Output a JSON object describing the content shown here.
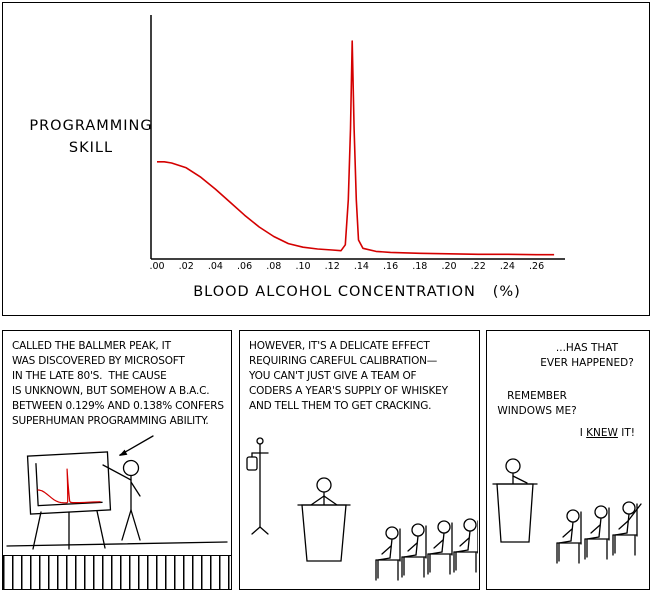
{
  "chart_data": {
    "type": "line",
    "title": "",
    "xlabel": "BLOOD ALCOHOL CONCENTRATION   (%)",
    "ylabel": "PROGRAMMING SKILL",
    "x_tick_labels": [
      ".00",
      ".02",
      ".04",
      ".06",
      ".08",
      ".10",
      ".12",
      ".14",
      ".16",
      ".18",
      ".20",
      ".22",
      ".24",
      ".26"
    ],
    "x_range": [
      0.0,
      0.272
    ],
    "y_range": [
      0,
      1
    ],
    "grid": false,
    "legend": false,
    "line_color": "#d40000",
    "series": [
      {
        "name": "programming skill vs blood alcohol concentration",
        "points": [
          [
            0,
            0.41
          ],
          [
            0.005,
            0.41
          ],
          [
            0.01,
            0.405
          ],
          [
            0.02,
            0.385
          ],
          [
            0.03,
            0.345
          ],
          [
            0.04,
            0.295
          ],
          [
            0.05,
            0.24
          ],
          [
            0.06,
            0.185
          ],
          [
            0.07,
            0.135
          ],
          [
            0.08,
            0.095
          ],
          [
            0.09,
            0.065
          ],
          [
            0.1,
            0.05
          ],
          [
            0.11,
            0.042
          ],
          [
            0.12,
            0.038
          ],
          [
            0.126,
            0.035
          ],
          [
            0.129,
            0.06
          ],
          [
            0.131,
            0.25
          ],
          [
            0.1325,
            0.55
          ],
          [
            0.1337,
            0.92
          ],
          [
            0.135,
            0.55
          ],
          [
            0.1365,
            0.25
          ],
          [
            0.138,
            0.08
          ],
          [
            0.141,
            0.045
          ],
          [
            0.15,
            0.032
          ],
          [
            0.16,
            0.028
          ],
          [
            0.18,
            0.024
          ],
          [
            0.2,
            0.022
          ],
          [
            0.22,
            0.02
          ],
          [
            0.24,
            0.02
          ],
          [
            0.26,
            0.018
          ],
          [
            0.272,
            0.018
          ]
        ]
      }
    ]
  },
  "panels": {
    "panel1": {
      "caption": "CALLED THE BALLMER PEAK, IT\nWAS DISCOVERED BY MICROSOFT\nIN THE LATE 80'S.  THE CAUSE\nIS UNKNOWN, BUT SOMEHOW A B.A.C.\nBETWEEN 0.129% AND 0.138% CONFERS\nSUPERHUMAN PROGRAMMING ABILITY."
    },
    "panel2": {
      "caption": "HOWEVER, IT'S A DELICATE EFFECT\nREQUIRING CAREFUL CALIBRATION—\nYOU CAN'T JUST GIVE A TEAM OF\nCODERS A YEAR'S SUPPLY OF WHISKEY\nAND TELL THEM TO GET CRACKING."
    },
    "panel3": {
      "audience_question": "...HAS THAT\nEVER HAPPENED?",
      "presenter_reply": "REMEMBER\nWINDOWS ME?",
      "exclaim_prefix": "I ",
      "exclaim_word": "KNEW",
      "exclaim_suffix": " IT!"
    }
  }
}
